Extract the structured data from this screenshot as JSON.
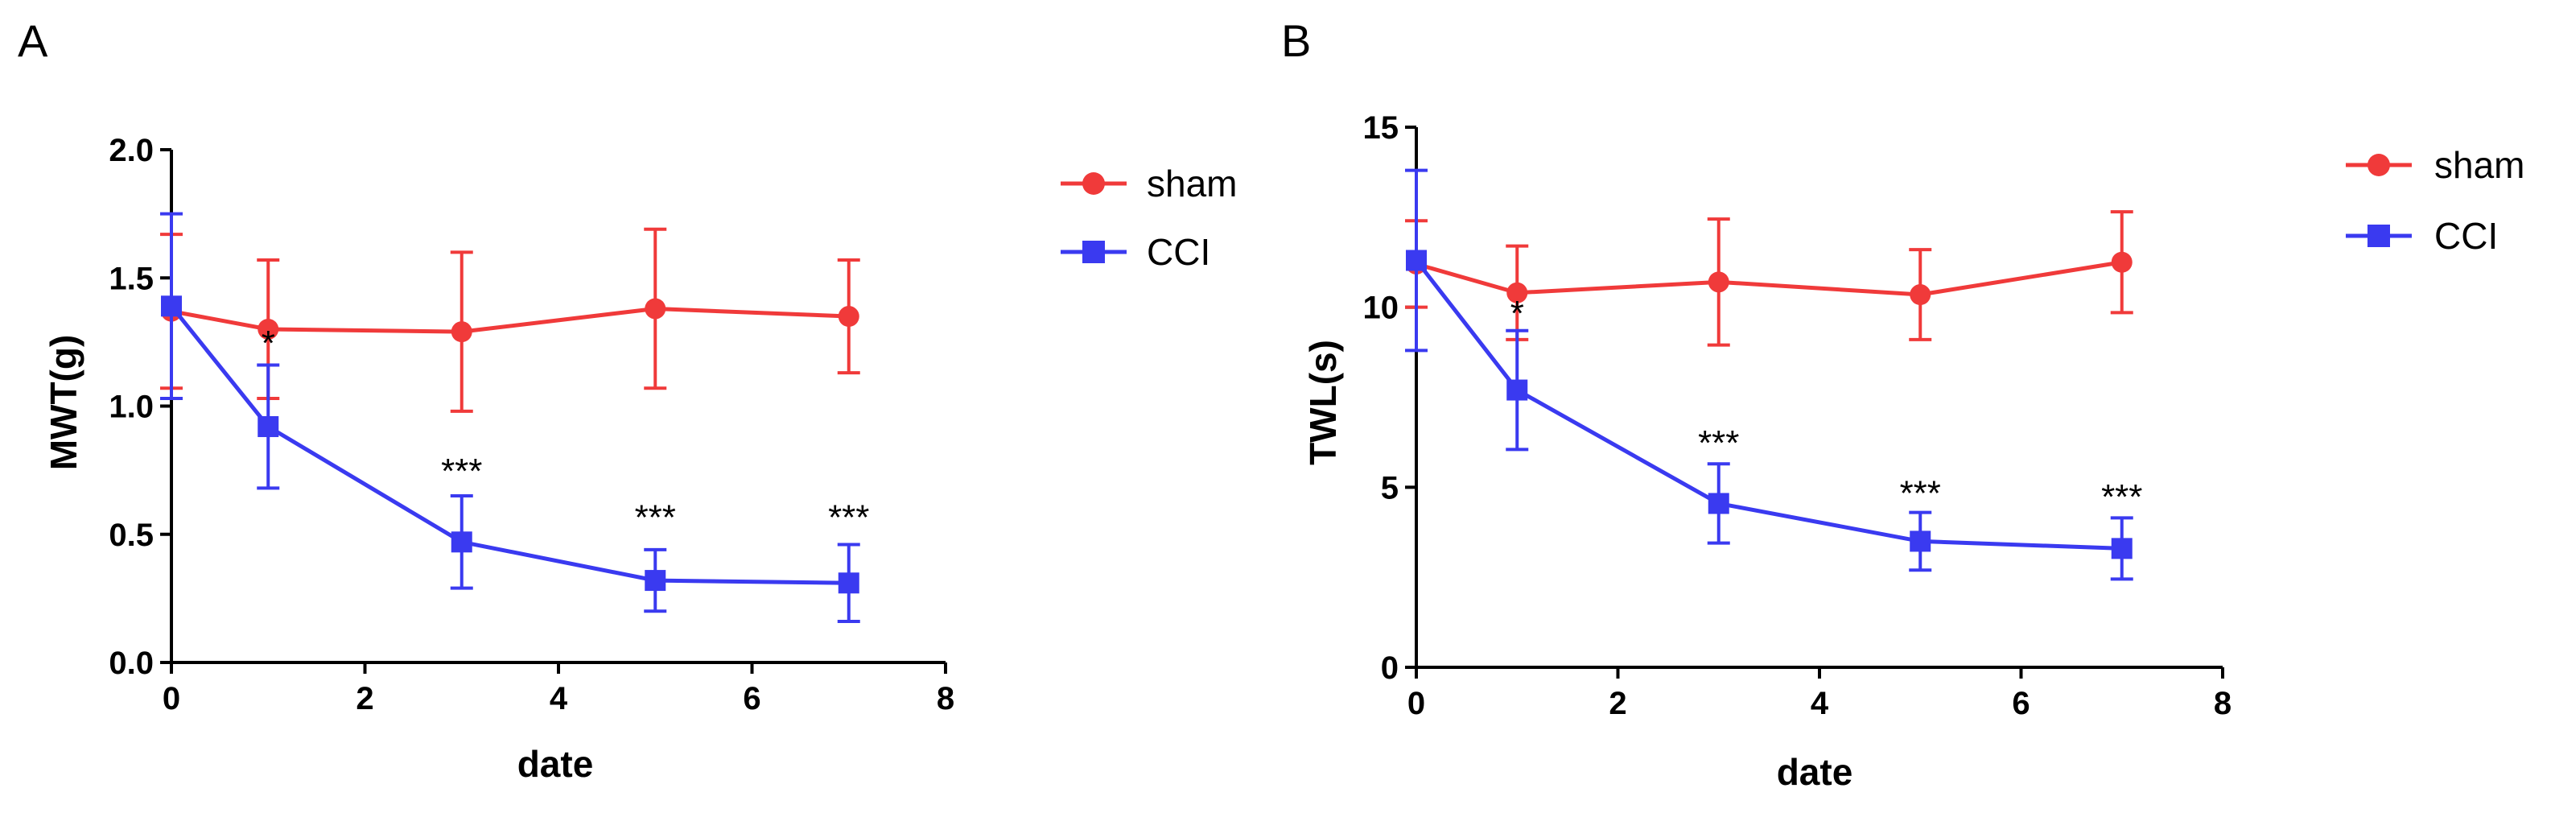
{
  "colors": {
    "sham": "#f03a3a",
    "cci": "#3a3af0",
    "axis": "#000000"
  },
  "chart_data": [
    {
      "panel_label": "A",
      "type": "line",
      "title": "",
      "xlabel": "date",
      "ylabel": "MWT(g)",
      "xlim": [
        0,
        8
      ],
      "ylim": [
        0,
        2.0
      ],
      "xticks": [
        0,
        2,
        4,
        6,
        8
      ],
      "xtick_labels": [
        "0",
        "2",
        "4",
        "6",
        "8"
      ],
      "yticks": [
        0,
        0.5,
        1.0,
        1.5,
        2.0
      ],
      "ytick_labels": [
        "0.0",
        "0.5",
        "1.0",
        "1.5",
        "2.0"
      ],
      "grid": false,
      "legend_position": "right",
      "series": [
        {
          "name": "sham",
          "marker": "circle",
          "x": [
            0,
            1,
            3,
            5,
            7
          ],
          "values": [
            1.37,
            1.3,
            1.29,
            1.38,
            1.35
          ],
          "errors": [
            0.3,
            0.27,
            0.31,
            0.31,
            0.22
          ]
        },
        {
          "name": "CCI",
          "marker": "square",
          "x": [
            0,
            1,
            3,
            5,
            7
          ],
          "values": [
            1.39,
            0.92,
            0.47,
            0.32,
            0.31
          ],
          "errors": [
            0.36,
            0.24,
            0.18,
            0.12,
            0.15
          ]
        }
      ],
      "annotations": [
        {
          "x": 1,
          "y": 1.2,
          "text": "*"
        },
        {
          "x": 3,
          "y": 0.7,
          "text": "***"
        },
        {
          "x": 5,
          "y": 0.52,
          "text": "***"
        },
        {
          "x": 7,
          "y": 0.52,
          "text": "***"
        }
      ]
    },
    {
      "panel_label": "B",
      "type": "line",
      "title": "",
      "xlabel": "date",
      "ylabel": "TWL(s)",
      "xlim": [
        0,
        8
      ],
      "ylim": [
        0,
        15
      ],
      "xticks": [
        0,
        2,
        4,
        6,
        8
      ],
      "xtick_labels": [
        "0",
        "2",
        "4",
        "6",
        "8"
      ],
      "yticks": [
        0,
        5,
        10,
        15
      ],
      "ytick_labels": [
        "0",
        "5",
        "10",
        "15"
      ],
      "grid": false,
      "legend_position": "right",
      "series": [
        {
          "name": "sham",
          "marker": "circle",
          "x": [
            0,
            1,
            3,
            5,
            7
          ],
          "values": [
            11.2,
            10.4,
            10.7,
            10.35,
            11.25
          ],
          "errors": [
            1.2,
            1.3,
            1.75,
            1.25,
            1.4
          ]
        },
        {
          "name": "CCI",
          "marker": "square",
          "x": [
            0,
            1,
            3,
            5,
            7
          ],
          "values": [
            11.3,
            7.7,
            4.55,
            3.5,
            3.3
          ],
          "errors": [
            2.5,
            1.65,
            1.1,
            0.8,
            0.85
          ]
        }
      ],
      "annotations": [
        {
          "x": 1,
          "y": 9.5,
          "text": "*"
        },
        {
          "x": 3,
          "y": 5.9,
          "text": "***"
        },
        {
          "x": 5,
          "y": 4.5,
          "text": "***"
        },
        {
          "x": 7,
          "y": 4.4,
          "text": "***"
        }
      ]
    }
  ]
}
